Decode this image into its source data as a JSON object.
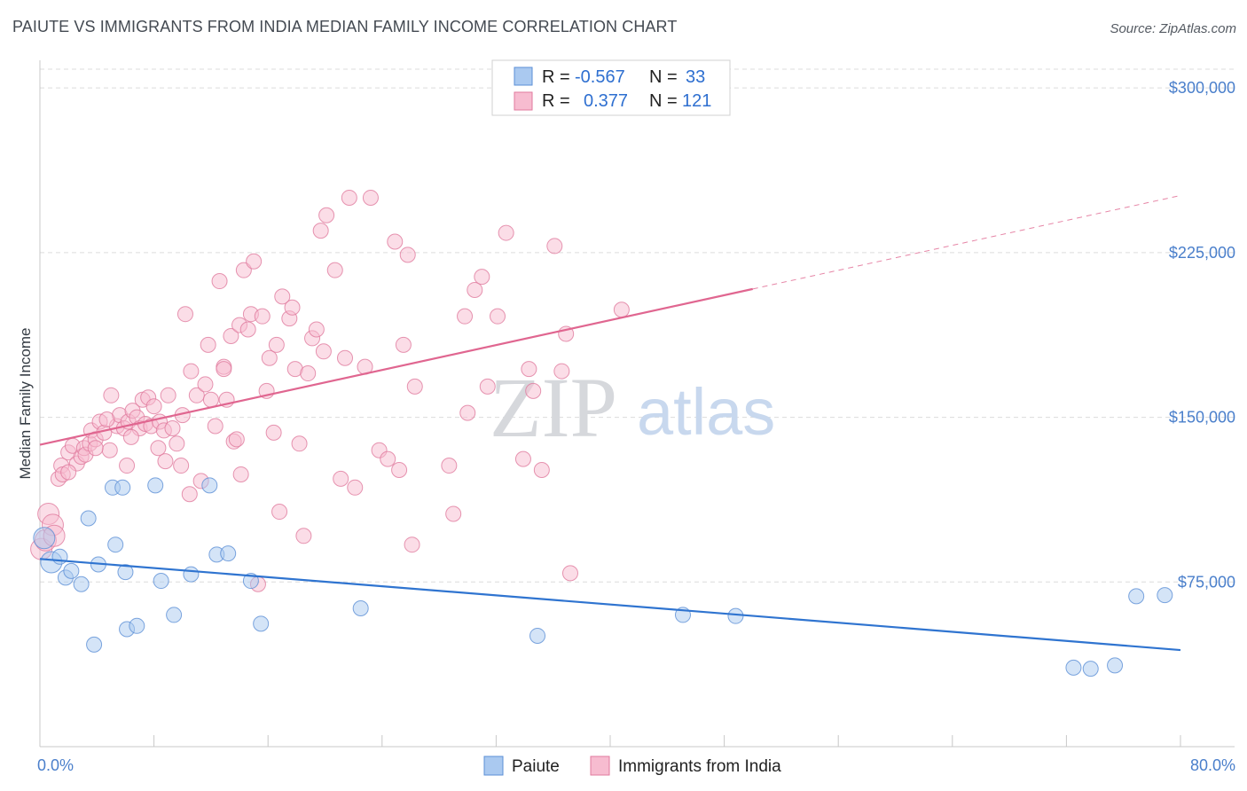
{
  "title": "PAIUTE VS IMMIGRANTS FROM INDIA MEDIAN FAMILY INCOME CORRELATION CHART",
  "source": "Source: ZipAtlas.com",
  "watermark": {
    "part1": "ZIP",
    "part2": "atlas"
  },
  "legend": {
    "row1": {
      "r_label": "R =",
      "r_value": "-0.567",
      "n_label": "N =",
      "n_value": "33"
    },
    "row2": {
      "r_label": "R =",
      "r_value": "0.377",
      "n_label": "N =",
      "n_value": "121"
    }
  },
  "bottom_legend": {
    "series1": "Paiute",
    "series2": "Immigrants from India"
  },
  "colors": {
    "paiute_fill": "#aac9f0",
    "paiute_stroke": "#5b8fd6",
    "paiute_line": "#2f74d0",
    "india_fill": "#f7bcd0",
    "india_stroke": "#e07a9e",
    "india_line": "#e06690",
    "grid": "#dcdcdc",
    "tick_text": "#4a7fcb"
  },
  "chart_data": {
    "type": "scatter",
    "title": "PAIUTE VS IMMIGRANTS FROM INDIA MEDIAN FAMILY INCOME CORRELATION CHART",
    "xlabel": "",
    "ylabel": "Median Family Income",
    "xlim": [
      0,
      80
    ],
    "ylim": [
      0,
      315000
    ],
    "x_tick_labels": {
      "min": "0.0%",
      "max": "80.0%"
    },
    "y_ticks": [
      {
        "value": 75000,
        "label": "$75,000"
      },
      {
        "value": 150000,
        "label": "$150,000"
      },
      {
        "value": 225000,
        "label": "$225,000"
      },
      {
        "value": 300000,
        "label": "$300,000"
      }
    ],
    "grid": true,
    "series": [
      {
        "name": "Paiute",
        "R": -0.567,
        "N": 33,
        "trend": {
          "x0": 0,
          "y0": 85500,
          "x1": 80,
          "y1": 44000,
          "dashed_from": null
        },
        "points": [
          [
            0.3,
            95000
          ],
          [
            0.8,
            84000
          ],
          [
            1.4,
            86500
          ],
          [
            1.8,
            77000
          ],
          [
            2.2,
            80000
          ],
          [
            2.9,
            74000
          ],
          [
            3.4,
            104000
          ],
          [
            3.8,
            46500
          ],
          [
            4.1,
            83000
          ],
          [
            5.1,
            118000
          ],
          [
            5.3,
            92000
          ],
          [
            5.8,
            118000
          ],
          [
            6.0,
            79500
          ],
          [
            6.1,
            53500
          ],
          [
            6.8,
            55000
          ],
          [
            8.1,
            119000
          ],
          [
            8.5,
            75500
          ],
          [
            9.4,
            60000
          ],
          [
            10.6,
            78500
          ],
          [
            11.9,
            119000
          ],
          [
            12.4,
            87500
          ],
          [
            13.2,
            88000
          ],
          [
            14.8,
            75500
          ],
          [
            15.5,
            56000
          ],
          [
            22.5,
            63000
          ],
          [
            34.9,
            50500
          ],
          [
            45.1,
            60000
          ],
          [
            48.8,
            59500
          ],
          [
            72.5,
            36000
          ],
          [
            73.7,
            35500
          ],
          [
            75.4,
            37000
          ],
          [
            76.9,
            68500
          ],
          [
            78.9,
            69000
          ]
        ]
      },
      {
        "name": "Immigrants from India",
        "R": 0.377,
        "N": 121,
        "trend": {
          "x0": 0,
          "y0": 137500,
          "x1": 80,
          "y1": 251000,
          "dashed_from": 50
        },
        "points": [
          [
            0.1,
            90000
          ],
          [
            0.4,
            94000
          ],
          [
            0.6,
            106000
          ],
          [
            0.9,
            101000
          ],
          [
            1.0,
            96000
          ],
          [
            1.3,
            122000
          ],
          [
            1.5,
            128000
          ],
          [
            1.6,
            124000
          ],
          [
            2.0,
            134000
          ],
          [
            2.3,
            137000
          ],
          [
            2.6,
            129000
          ],
          [
            2.9,
            132000
          ],
          [
            3.1,
            136000
          ],
          [
            3.2,
            133000
          ],
          [
            3.5,
            138000
          ],
          [
            3.6,
            144000
          ],
          [
            3.9,
            140000
          ],
          [
            4.2,
            148000
          ],
          [
            4.5,
            143000
          ],
          [
            4.9,
            135000
          ],
          [
            5.0,
            160000
          ],
          [
            5.4,
            146000
          ],
          [
            5.6,
            151000
          ],
          [
            5.9,
            145000
          ],
          [
            6.1,
            128000
          ],
          [
            6.2,
            148000
          ],
          [
            6.5,
            153000
          ],
          [
            6.8,
            150000
          ],
          [
            7.0,
            145000
          ],
          [
            7.2,
            158000
          ],
          [
            7.4,
            147000
          ],
          [
            7.6,
            159000
          ],
          [
            7.8,
            146000
          ],
          [
            8.0,
            155000
          ],
          [
            8.3,
            136000
          ],
          [
            8.4,
            148000
          ],
          [
            8.7,
            144000
          ],
          [
            9.0,
            160000
          ],
          [
            9.3,
            145000
          ],
          [
            9.6,
            138000
          ],
          [
            9.9,
            128000
          ],
          [
            10.0,
            151000
          ],
          [
            10.2,
            197000
          ],
          [
            10.5,
            115000
          ],
          [
            10.6,
            171000
          ],
          [
            11.0,
            160000
          ],
          [
            11.3,
            121000
          ],
          [
            11.6,
            165000
          ],
          [
            11.8,
            183000
          ],
          [
            12.0,
            158000
          ],
          [
            12.3,
            146000
          ],
          [
            12.6,
            212000
          ],
          [
            12.9,
            173000
          ],
          [
            13.1,
            158000
          ],
          [
            13.4,
            187000
          ],
          [
            13.6,
            139000
          ],
          [
            13.8,
            140000
          ],
          [
            14.0,
            192000
          ],
          [
            14.1,
            124000
          ],
          [
            14.3,
            217000
          ],
          [
            14.6,
            190000
          ],
          [
            14.8,
            197000
          ],
          [
            15.0,
            221000
          ],
          [
            15.3,
            74000
          ],
          [
            15.6,
            196000
          ],
          [
            15.9,
            162000
          ],
          [
            16.1,
            177000
          ],
          [
            16.4,
            143000
          ],
          [
            16.6,
            183000
          ],
          [
            16.8,
            107000
          ],
          [
            17.0,
            205000
          ],
          [
            17.5,
            195000
          ],
          [
            17.7,
            200000
          ],
          [
            17.9,
            172000
          ],
          [
            18.2,
            138000
          ],
          [
            18.5,
            96000
          ],
          [
            18.8,
            170000
          ],
          [
            19.1,
            186000
          ],
          [
            19.4,
            190000
          ],
          [
            19.7,
            235000
          ],
          [
            19.9,
            180000
          ],
          [
            20.1,
            242000
          ],
          [
            20.7,
            217000
          ],
          [
            21.1,
            122000
          ],
          [
            21.4,
            177000
          ],
          [
            21.7,
            250000
          ],
          [
            22.1,
            118000
          ],
          [
            22.8,
            173000
          ],
          [
            23.2,
            250000
          ],
          [
            23.8,
            135000
          ],
          [
            24.4,
            131000
          ],
          [
            24.9,
            230000
          ],
          [
            25.2,
            126000
          ],
          [
            25.5,
            183000
          ],
          [
            25.8,
            224000
          ],
          [
            26.3,
            164000
          ],
          [
            26.1,
            92000
          ],
          [
            28.7,
            128000
          ],
          [
            29.0,
            106000
          ],
          [
            29.8,
            196000
          ],
          [
            30.0,
            152000
          ],
          [
            30.5,
            208000
          ],
          [
            31.0,
            214000
          ],
          [
            31.4,
            164000
          ],
          [
            32.1,
            196000
          ],
          [
            32.7,
            234000
          ],
          [
            33.9,
            131000
          ],
          [
            34.3,
            172000
          ],
          [
            34.6,
            162000
          ],
          [
            35.2,
            126000
          ],
          [
            36.1,
            228000
          ],
          [
            36.6,
            171000
          ],
          [
            36.9,
            188000
          ],
          [
            37.2,
            79000
          ],
          [
            40.8,
            199000
          ],
          [
            12.9,
            172000
          ],
          [
            3.9,
            136000
          ],
          [
            6.4,
            141000
          ],
          [
            8.8,
            130000
          ],
          [
            4.7,
            149000
          ],
          [
            2.0,
            125000
          ]
        ]
      }
    ]
  }
}
